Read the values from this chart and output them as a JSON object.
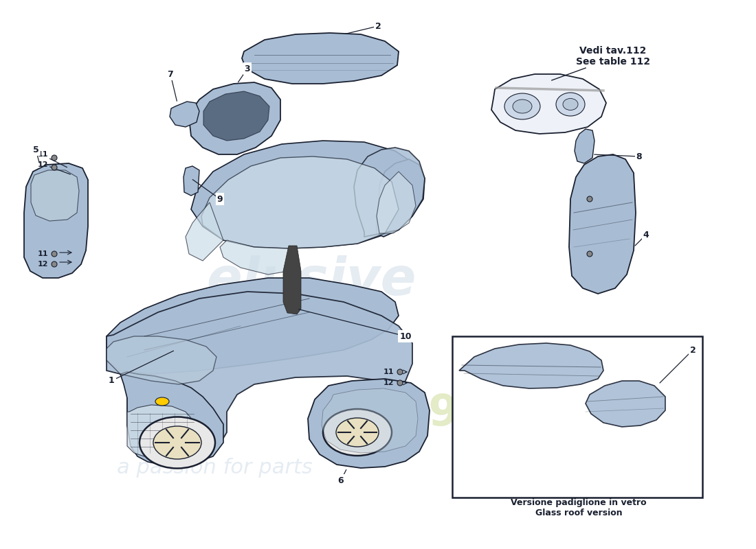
{
  "bg_color": "#ffffff",
  "car_color": "#a8bdd4",
  "car_color2": "#b8ccdc",
  "outline_color": "#2a3a50",
  "dark_line": "#1a2030",
  "window_color": "#ccdde8",
  "wheel_color": "#e8e0c0",
  "note_vedi": "Vedi tav.112\nSee table 112",
  "note_glass": "Versione padiglione in vetro\nGlass roof version",
  "wm1_color": "#c0d0e0",
  "wm2_color": "#c8d890"
}
